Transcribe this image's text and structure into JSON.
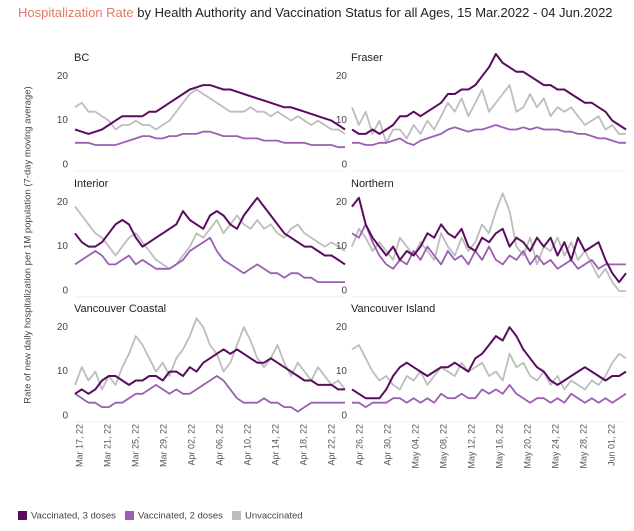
{
  "chart_data": {
    "type": "line",
    "title_highlight": "Hospitalization Rate",
    "title": "by Health Authority and Vaccination Status for all Ages, 15 Mar.2022 - 04 Jun.2022",
    "y_label": "Rate of new daily hospitalization per 1M population (7-day moving average)",
    "categories": [
      null,
      "Mar 17, 22",
      null,
      "Mar 21, 22",
      null,
      "Mar 25, 22",
      null,
      "Mar 29, 22",
      null,
      "Apr 02, 22",
      null,
      "Apr 06, 22",
      null,
      "Apr 10, 22",
      null,
      "Apr 14, 22",
      null,
      "Apr 18, 22",
      null,
      "Apr 22, 22",
      null,
      "Apr 26, 22",
      null,
      "Apr 30, 22",
      null,
      "May 04, 22",
      null,
      "May 08, 22",
      null,
      "May 12, 22",
      null,
      "May 16, 22",
      null,
      "May 20, 22",
      null,
      "May 24, 22",
      null,
      "May 28, 22",
      null,
      "Jun 01, 22",
      null
    ],
    "ylim": [
      0,
      25
    ],
    "yticks": [
      0,
      10,
      20
    ],
    "grid": false,
    "panels": [
      {
        "title": "BC",
        "series": [
          {
            "name": "Vaccinated, 3 doses",
            "color": "#5a0d5e",
            "values": [
              8,
              7.5,
              7,
              7.5,
              8,
              9,
              10,
              11,
              11,
              11,
              11,
              12,
              12,
              13,
              14,
              15,
              16,
              17,
              17.5,
              18,
              18,
              17.5,
              17,
              17,
              16.5,
              16,
              15.5,
              15,
              14.5,
              14,
              13.5,
              13,
              13,
              12.5,
              12,
              11.5,
              11,
              10.5,
              10,
              9,
              8
            ]
          },
          {
            "name": "Vaccinated, 2 doses",
            "color": "#9b5fb0",
            "values": [
              5,
              5,
              5,
              4.5,
              4.5,
              4.5,
              4.5,
              5,
              5.5,
              6,
              6.5,
              6.5,
              6,
              6,
              6.5,
              6.5,
              7,
              7,
              7,
              7.5,
              7.5,
              7,
              6.5,
              6.5,
              6.5,
              6,
              6,
              6,
              5.5,
              5.5,
              5.5,
              5,
              5,
              5,
              5,
              4.5,
              4.5,
              4.5,
              4.5,
              4,
              4
            ]
          },
          {
            "name": "Unvaccinated",
            "color": "#bdbdbd",
            "values": [
              13,
              14,
              12,
              12,
              11,
              10,
              8,
              9,
              9,
              10,
              9,
              9,
              8,
              9,
              10,
              12,
              14,
              16,
              17,
              16,
              15,
              14,
              13,
              12,
              12,
              12,
              13,
              12,
              12,
              11,
              12,
              11,
              10,
              11,
              10,
              9,
              10,
              9,
              8,
              8,
              7
            ]
          }
        ]
      },
      {
        "title": "Fraser",
        "series": [
          {
            "name": "Vaccinated, 3 doses",
            "color": "#5a0d5e",
            "values": [
              8,
              7,
              7,
              8,
              7,
              8,
              9,
              11,
              11,
              12,
              11,
              12,
              13,
              14,
              16,
              16,
              17,
              17,
              18,
              20,
              22,
              25,
              23,
              22,
              21,
              21,
              20,
              19,
              18,
              18,
              17,
              17,
              16,
              15,
              14,
              14,
              13,
              12,
              10,
              9,
              8
            ]
          },
          {
            "name": "Vaccinated, 2 doses",
            "color": "#9b5fb0",
            "values": [
              5,
              5,
              4.5,
              4.5,
              5,
              5,
              5.5,
              6,
              5,
              4.5,
              5.5,
              6,
              6.5,
              7,
              8,
              8.5,
              8,
              7.5,
              8,
              8,
              8.5,
              9,
              8.5,
              8,
              8,
              8.5,
              8,
              8.5,
              8,
              8,
              8,
              7.5,
              7.5,
              7,
              7,
              6.5,
              6,
              6,
              5.5,
              5,
              5
            ]
          },
          {
            "name": "Unvaccinated",
            "color": "#bdbdbd",
            "values": [
              13,
              9,
              12,
              7,
              10,
              5,
              8,
              8,
              6,
              9,
              7,
              10,
              8,
              11,
              14,
              12,
              15,
              11,
              14,
              17,
              12,
              14,
              16,
              18,
              12,
              13,
              16,
              13,
              15,
              11,
              13,
              12,
              13,
              11,
              9,
              10,
              11,
              8,
              9,
              7,
              7
            ]
          }
        ]
      },
      {
        "title": "Interior",
        "series": [
          {
            "name": "Vaccinated, 3 doses",
            "color": "#5a0d5e",
            "values": [
              13,
              11,
              10,
              10,
              11,
              13,
              15,
              16,
              15,
              12,
              10,
              11,
              12,
              13,
              14,
              15,
              18,
              16,
              15,
              14,
              17,
              18,
              17,
              15,
              14,
              17,
              19,
              21,
              19,
              17,
              15,
              13,
              12,
              11,
              10,
              10,
              9,
              8,
              8,
              7,
              6
            ]
          },
          {
            "name": "Vaccinated, 2 doses",
            "color": "#9b5fb0",
            "values": [
              6,
              7,
              8,
              9,
              8,
              6,
              6,
              7,
              8,
              6,
              7,
              6,
              5,
              5,
              5,
              6,
              7,
              9,
              10,
              11,
              12,
              9,
              7,
              6,
              5,
              4,
              5,
              6,
              5,
              4,
              4,
              3,
              4,
              4,
              3,
              3,
              2,
              2,
              2,
              2,
              2
            ]
          },
          {
            "name": "Unvaccinated",
            "color": "#bdbdbd",
            "values": [
              19,
              17,
              15,
              13,
              12,
              10,
              8,
              10,
              12,
              13,
              11,
              9,
              7,
              6,
              5,
              6,
              8,
              10,
              13,
              12,
              14,
              16,
              13,
              15,
              17,
              15,
              14,
              16,
              14,
              15,
              13,
              12,
              14,
              15,
              13,
              12,
              11,
              10,
              11,
              10,
              9
            ]
          }
        ]
      },
      {
        "title": "Northern",
        "series": [
          {
            "name": "Vaccinated, 3 doses",
            "color": "#5a0d5e",
            "values": [
              19,
              21,
              15,
              12,
              10,
              8,
              10,
              7,
              9,
              8,
              10,
              13,
              12,
              15,
              13,
              12,
              14,
              10,
              9,
              12,
              11,
              13,
              14,
              10,
              12,
              11,
              9,
              12,
              10,
              12,
              8,
              11,
              7,
              12,
              9,
              10,
              11,
              7,
              4,
              2,
              4
            ]
          },
          {
            "name": "Vaccinated, 2 doses",
            "color": "#9b5fb0",
            "values": [
              13,
              12,
              15,
              11,
              8,
              6,
              5,
              7,
              6,
              9,
              7,
              10,
              8,
              6,
              9,
              7,
              8,
              6,
              9,
              7,
              10,
              7,
              6,
              8,
              7,
              9,
              6,
              8,
              6,
              7,
              5,
              6,
              7,
              5,
              6,
              7,
              5,
              6,
              6,
              6,
              6
            ]
          },
          {
            "name": "Unvaccinated",
            "color": "#bdbdbd",
            "values": [
              10,
              14,
              12,
              9,
              11,
              9,
              7,
              12,
              10,
              8,
              11,
              9,
              7,
              13,
              10,
              8,
              12,
              9,
              11,
              15,
              13,
              18,
              22,
              18,
              10,
              8,
              12,
              6,
              10,
              9,
              12,
              8,
              11,
              7,
              9,
              6,
              3,
              5,
              2,
              0,
              0
            ]
          }
        ]
      },
      {
        "title": "Vancouver Coastal",
        "series": [
          {
            "name": "Vaccinated, 3 doses",
            "color": "#5a0d5e",
            "values": [
              5,
              6,
              5,
              6,
              8,
              9,
              9,
              8,
              7,
              8,
              8,
              9,
              9,
              8,
              10,
              10,
              9,
              11,
              10,
              12,
              13,
              14,
              15,
              14,
              15,
              14,
              13,
              12,
              12,
              13,
              12,
              11,
              10,
              9,
              8,
              8,
              7,
              7,
              7,
              6,
              6
            ]
          },
          {
            "name": "Vaccinated, 2 doses",
            "color": "#9b5fb0",
            "values": [
              5,
              4,
              3,
              3,
              2,
              2,
              3,
              3,
              4,
              5,
              5,
              6,
              7,
              6,
              5,
              6,
              5,
              5,
              6,
              7,
              8,
              9,
              8,
              6,
              4,
              3,
              3,
              3,
              4,
              3,
              3,
              2,
              2,
              1,
              2,
              3,
              3,
              3,
              3,
              3,
              3
            ]
          },
          {
            "name": "Unvaccinated",
            "color": "#bdbdbd",
            "values": [
              7,
              11,
              8,
              10,
              6,
              9,
              7,
              11,
              14,
              18,
              16,
              13,
              10,
              12,
              9,
              13,
              15,
              18,
              22,
              20,
              16,
              14,
              10,
              12,
              16,
              20,
              17,
              13,
              11,
              13,
              16,
              12,
              9,
              12,
              10,
              8,
              11,
              9,
              7,
              8,
              6
            ]
          }
        ]
      },
      {
        "title": "Vancouver Island",
        "series": [
          {
            "name": "Vaccinated, 3 doses",
            "color": "#5a0d5e",
            "values": [
              6,
              5,
              4,
              4,
              4,
              6,
              9,
              11,
              12,
              11,
              10,
              9,
              10,
              11,
              11,
              12,
              11,
              10,
              13,
              14,
              16,
              18,
              17,
              20,
              18,
              15,
              13,
              11,
              10,
              8,
              7,
              8,
              9,
              10,
              11,
              10,
              9,
              8,
              9,
              9,
              10
            ]
          },
          {
            "name": "Vaccinated, 2 doses",
            "color": "#9b5fb0",
            "values": [
              3,
              3,
              2,
              3,
              3,
              3,
              4,
              4,
              3,
              4,
              3,
              4,
              3,
              5,
              4,
              4,
              5,
              4,
              4,
              6,
              5,
              6,
              5,
              7,
              5,
              4,
              3,
              4,
              4,
              3,
              4,
              3,
              5,
              4,
              3,
              4,
              3,
              4,
              3,
              4,
              5
            ]
          },
          {
            "name": "Unvaccinated",
            "color": "#bdbdbd",
            "values": [
              15,
              16,
              13,
              10,
              8,
              9,
              7,
              6,
              9,
              8,
              10,
              7,
              9,
              11,
              10,
              9,
              12,
              10,
              11,
              12,
              9,
              10,
              8,
              14,
              11,
              12,
              9,
              8,
              10,
              7,
              9,
              6,
              8,
              7,
              6,
              8,
              7,
              9,
              12,
              14,
              13
            ]
          }
        ]
      }
    ]
  }
}
